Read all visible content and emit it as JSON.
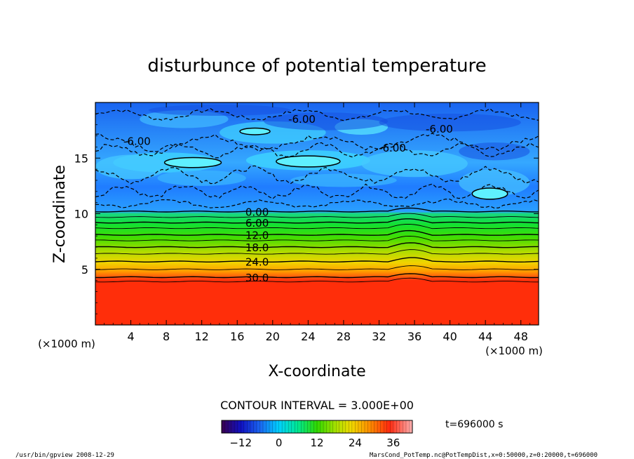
{
  "chart_data": {
    "type": "heatmap",
    "title": "disturbunce of potential temperature",
    "xlabel": "X-coordinate",
    "ylabel": "Z-coordinate",
    "x_unit_left": "(×1000 m)",
    "x_unit_right": "(×1000 m)",
    "xlim": [
      0,
      50
    ],
    "ylim": [
      0,
      20
    ],
    "x_ticks": [
      4,
      8,
      12,
      16,
      20,
      24,
      28,
      32,
      36,
      40,
      44,
      48
    ],
    "y_ticks": [
      5,
      10,
      15
    ],
    "contour_interval_text": "CONTOUR INTERVAL = 3.000E+00",
    "time_text": "t=696000 s",
    "colorbar": {
      "range": [
        -18,
        42
      ],
      "ticks": [
        -12,
        0,
        12,
        24,
        36
      ],
      "tick_labels": [
        "−12",
        "0",
        "12",
        "24",
        "36"
      ]
    },
    "contours": [
      {
        "z": 10.2,
        "label": "0.00",
        "x": 16.5
      },
      {
        "z": 9.2,
        "label": "6.00",
        "x": 16.5
      },
      {
        "z": 8.1,
        "label": "12.0",
        "x": 16.5
      },
      {
        "z": 7.0,
        "label": "18.0",
        "x": 16.5
      },
      {
        "z": 5.7,
        "label": "24.0",
        "x": 16.5
      },
      {
        "z": 4.3,
        "label": "30.0",
        "x": 16.5
      }
    ],
    "upper_labels": [
      {
        "x": 4.7,
        "z": 16.5,
        "label": "-6.00"
      },
      {
        "x": 23.3,
        "z": 18.5,
        "label": "-6.00"
      },
      {
        "x": 38.8,
        "z": 17.6,
        "label": "-6.00"
      },
      {
        "x": 33.5,
        "z": 15.9,
        "label": "-6.00"
      }
    ]
  },
  "footer": {
    "program": "/usr/bin/gpview   2008-12-29",
    "source": "MarsCond_PotTemp.nc@PotTempDist,x=0:50000,z=0:20000,t=696000"
  },
  "colors": {
    "red": "#ff2a0a",
    "orange": "#ff6a00",
    "yellow": "#f0d800",
    "green": "#38d800",
    "cyan": "#00e8e8",
    "blue": "#1c74ff"
  }
}
